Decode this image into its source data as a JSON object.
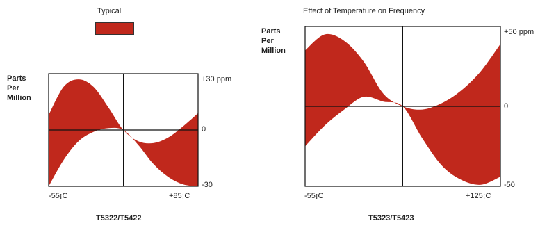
{
  "legend": {
    "label": "Typical",
    "swatch_color": "#c0281c"
  },
  "chart_data": [
    {
      "type": "area",
      "title": "",
      "ylabel": "Parts\nPer\nMillion",
      "xlabel": "",
      "x_tick_labels": [
        "-55¡C",
        "+85¡C"
      ],
      "y_tick_labels": [
        "+30 ppm",
        "0",
        "-30"
      ],
      "xlim": [
        -55,
        85
      ],
      "ylim": [
        -30,
        30
      ],
      "caption": "T5322/T5422",
      "color": "#c0281c",
      "series": [
        {
          "x": [
            -55,
            -41,
            -27,
            -13,
            1,
            15,
            29,
            43,
            57,
            71,
            85
          ],
          "y_upper": [
            8,
            23,
            27,
            23,
            12,
            0,
            -6,
            -7,
            -4,
            2,
            9
          ],
          "y_lower": [
            -30,
            -16,
            -6,
            -1,
            1,
            0,
            -8,
            -18,
            -25,
            -29,
            -30
          ]
        }
      ]
    },
    {
      "type": "area",
      "title": "Effect of Temperature on Frequency",
      "ylabel": "Parts\nPer\nMillion",
      "xlabel": "",
      "x_tick_labels": [
        "-55¡C",
        "+125¡C"
      ],
      "y_tick_labels": [
        "+50 ppm",
        "0",
        "-50"
      ],
      "xlim": [
        -55,
        125
      ],
      "ylim": [
        -50,
        50
      ],
      "caption": "T5323/T5423",
      "color": "#c0281c",
      "series": [
        {
          "x": [
            -55,
            -37,
            -19,
            -1,
            17,
            35,
            53,
            71,
            89,
            107,
            125
          ],
          "y_upper": [
            35,
            45,
            41,
            28,
            8,
            0,
            -2,
            2,
            10,
            22,
            39
          ],
          "y_lower": [
            -25,
            -12,
            -2,
            6,
            3,
            0,
            -20,
            -37,
            -46,
            -49,
            -44
          ]
        }
      ]
    }
  ]
}
